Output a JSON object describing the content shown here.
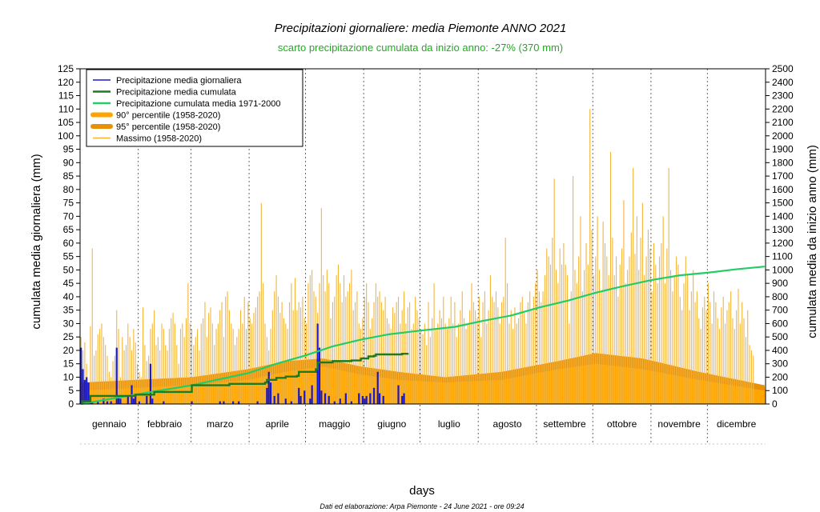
{
  "chart_data": {
    "type": "bar",
    "title": "Precipitazioni giornaliere: media Piemonte ANNO 2021",
    "subtitle": "scarto precipitazione cumulata da inizio anno: -27% (370 mm)",
    "xlabel": "days",
    "ylabel_left": "cumulata media giornaliera (mm)",
    "ylabel_right": "cumulata media da inizio anno (mm)",
    "footer": "Dati ed elaborazione: Arpa Piemonte - 24 June 2021 - ore 09:24",
    "ylim_left": [
      0,
      125
    ],
    "ylim_right": [
      0,
      2500
    ],
    "xlim": [
      1,
      365
    ],
    "months": [
      "gennaio",
      "febbraio",
      "marzo",
      "aprile",
      "maggio",
      "giugno",
      "luglio",
      "agosto",
      "settembre",
      "ottobre",
      "novembre",
      "dicembre"
    ],
    "legend_position": "top-left",
    "legend": [
      {
        "label": "Precipitazione media giornaliera",
        "color": "#1a1acc",
        "style": "bar"
      },
      {
        "label": "Precipitazione media cumulata",
        "color": "#1e7a1e",
        "style": "line"
      },
      {
        "label": "Precipitazione cumulata media 1971-2000",
        "color": "#22cc66",
        "style": "line"
      },
      {
        "label": "90° percentile (1958-2020)",
        "color": "#ffa500",
        "style": "band"
      },
      {
        "label": "95° percentile (1958-2020)",
        "color": "#e8900a",
        "style": "band"
      },
      {
        "label": "Massimo (1958-2020)",
        "color": "#f5b53a",
        "style": "bar"
      }
    ],
    "series": [
      {
        "name": "Precipitazione media giornaliera",
        "axis": "left",
        "points": [
          [
            1,
            21
          ],
          [
            2,
            13
          ],
          [
            3,
            9
          ],
          [
            4,
            10
          ],
          [
            5,
            8
          ],
          [
            6,
            3
          ],
          [
            7,
            1
          ],
          [
            10,
            1
          ],
          [
            13,
            2
          ],
          [
            15,
            1
          ],
          [
            17,
            1
          ],
          [
            20,
            21
          ],
          [
            21,
            3
          ],
          [
            22,
            2
          ],
          [
            26,
            3
          ],
          [
            28,
            7
          ],
          [
            29,
            2
          ],
          [
            30,
            3
          ],
          [
            32,
            1
          ],
          [
            36,
            3
          ],
          [
            38,
            15
          ],
          [
            39,
            2
          ],
          [
            45,
            1
          ],
          [
            60,
            1
          ],
          [
            75,
            1
          ],
          [
            77,
            1
          ],
          [
            82,
            1
          ],
          [
            85,
            1
          ],
          [
            95,
            1
          ],
          [
            100,
            6
          ],
          [
            101,
            12
          ],
          [
            102,
            8
          ],
          [
            104,
            3
          ],
          [
            106,
            4
          ],
          [
            110,
            2
          ],
          [
            113,
            1
          ],
          [
            117,
            6
          ],
          [
            118,
            3
          ],
          [
            120,
            5
          ],
          [
            123,
            2
          ],
          [
            124,
            7
          ],
          [
            127,
            30
          ],
          [
            128,
            21
          ],
          [
            129,
            5
          ],
          [
            131,
            4
          ],
          [
            133,
            3
          ],
          [
            136,
            1
          ],
          [
            139,
            2
          ],
          [
            142,
            4
          ],
          [
            145,
            1
          ],
          [
            149,
            4
          ],
          [
            151,
            3
          ],
          [
            152,
            2
          ],
          [
            153,
            3
          ],
          [
            155,
            4
          ],
          [
            157,
            6
          ],
          [
            159,
            12
          ],
          [
            160,
            4
          ],
          [
            162,
            3
          ],
          [
            170,
            7
          ],
          [
            172,
            3
          ],
          [
            173,
            4
          ]
        ]
      },
      {
        "name": "Precipitazione media cumulata",
        "axis": "right",
        "points": [
          [
            1,
            20
          ],
          [
            6,
            60
          ],
          [
            30,
            70
          ],
          [
            40,
            90
          ],
          [
            60,
            140
          ],
          [
            80,
            150
          ],
          [
            99,
            160
          ],
          [
            100,
            180
          ],
          [
            105,
            195
          ],
          [
            110,
            205
          ],
          [
            116,
            210
          ],
          [
            117,
            240
          ],
          [
            126,
            260
          ],
          [
            127,
            310
          ],
          [
            135,
            320
          ],
          [
            145,
            325
          ],
          [
            150,
            340
          ],
          [
            154,
            355
          ],
          [
            157,
            360
          ],
          [
            158,
            370
          ],
          [
            172,
            375
          ],
          [
            175,
            380
          ]
        ]
      },
      {
        "name": "Precipitazione cumulata media 1971-2000",
        "axis": "right",
        "points": [
          [
            1,
            0
          ],
          [
            30,
            70
          ],
          [
            60,
            140
          ],
          [
            90,
            230
          ],
          [
            105,
            300
          ],
          [
            120,
            360
          ],
          [
            135,
            430
          ],
          [
            150,
            480
          ],
          [
            165,
            520
          ],
          [
            180,
            545
          ],
          [
            200,
            575
          ],
          [
            215,
            620
          ],
          [
            230,
            660
          ],
          [
            245,
            720
          ],
          [
            260,
            770
          ],
          [
            275,
            830
          ],
          [
            290,
            880
          ],
          [
            305,
            925
          ],
          [
            320,
            960
          ],
          [
            335,
            980
          ],
          [
            350,
            1005
          ],
          [
            365,
            1025
          ]
        ]
      }
    ],
    "percentile_90": [
      [
        1,
        5
      ],
      [
        30,
        6
      ],
      [
        60,
        7
      ],
      [
        90,
        9
      ],
      [
        110,
        12
      ],
      [
        130,
        14
      ],
      [
        150,
        11
      ],
      [
        170,
        9
      ],
      [
        195,
        8
      ],
      [
        225,
        9
      ],
      [
        255,
        13
      ],
      [
        275,
        15
      ],
      [
        300,
        13
      ],
      [
        330,
        9
      ],
      [
        365,
        5
      ]
    ],
    "percentile_95": [
      [
        1,
        8
      ],
      [
        30,
        9
      ],
      [
        60,
        10
      ],
      [
        90,
        13
      ],
      [
        110,
        16
      ],
      [
        130,
        17
      ],
      [
        150,
        14
      ],
      [
        170,
        12
      ],
      [
        195,
        10
      ],
      [
        225,
        12
      ],
      [
        255,
        16
      ],
      [
        275,
        19
      ],
      [
        300,
        17
      ],
      [
        330,
        12
      ],
      [
        365,
        7
      ]
    ],
    "maximum_values": [
      25,
      20,
      23,
      15,
      8,
      29,
      58,
      18,
      20,
      26,
      28,
      30,
      25,
      22,
      18,
      12,
      10,
      16,
      18,
      35,
      28,
      10,
      25,
      20,
      22,
      30,
      25,
      20,
      28,
      23,
      15,
      12,
      10,
      36,
      22,
      16,
      18,
      28,
      30,
      35,
      22,
      25,
      20,
      30,
      28,
      22,
      20,
      28,
      32,
      34,
      30,
      22,
      15,
      28,
      30,
      25,
      32,
      45,
      30,
      28,
      22,
      25,
      28,
      20,
      30,
      32,
      38,
      25,
      34,
      36,
      30,
      22,
      28,
      30,
      35,
      38,
      25,
      40,
      42,
      35,
      30,
      28,
      22,
      25,
      28,
      35,
      30,
      40,
      28,
      38,
      32,
      30,
      34,
      36,
      40,
      42,
      75,
      45,
      30,
      25,
      20,
      28,
      35,
      42,
      48,
      40,
      34,
      38,
      32,
      30,
      28,
      38,
      45,
      35,
      47,
      35,
      38,
      36,
      40,
      32,
      30,
      45,
      48,
      50,
      42,
      40,
      34,
      45,
      73,
      48,
      42,
      50,
      45,
      32,
      38,
      40,
      48,
      52,
      45,
      38,
      48,
      40,
      42,
      45,
      50,
      35,
      38,
      42,
      30,
      28,
      32,
      40,
      45,
      38,
      28,
      32,
      38,
      45,
      40,
      42,
      38,
      35,
      40,
      32,
      30,
      28,
      36,
      34,
      38,
      40,
      30,
      35,
      42,
      30,
      36,
      38,
      28,
      30,
      40,
      35,
      32,
      28,
      26,
      30,
      22,
      38,
      25,
      32,
      45,
      28,
      30,
      35,
      32,
      40,
      30,
      28,
      32,
      40,
      30,
      38,
      25,
      30,
      35,
      42,
      32,
      28,
      30,
      35,
      45,
      38,
      35,
      32,
      40,
      25,
      38,
      42,
      30,
      35,
      48,
      40,
      38,
      42,
      36,
      30,
      38,
      40,
      62,
      45,
      30,
      35,
      28,
      36,
      30,
      32,
      38,
      40,
      34,
      30,
      38,
      42,
      35,
      40,
      45,
      50,
      42,
      38,
      42,
      48,
      58,
      55,
      52,
      62,
      84,
      50,
      45,
      58,
      52,
      60,
      52,
      48,
      30,
      42,
      85,
      50,
      45,
      55,
      70,
      42,
      50,
      60,
      52,
      110,
      65,
      48,
      55,
      70,
      50,
      42,
      68,
      60,
      55,
      48,
      94,
      62,
      48,
      55,
      40,
      52,
      58,
      76,
      45,
      50,
      55,
      64,
      88,
      56,
      70,
      50,
      62,
      75,
      48,
      55,
      65,
      58,
      42,
      60,
      52,
      45,
      55,
      60,
      70,
      45,
      58,
      88,
      50,
      42,
      48,
      55,
      52,
      40,
      35,
      45,
      55,
      48,
      35,
      42,
      50,
      38,
      42,
      32,
      28,
      36,
      40,
      35,
      45,
      38,
      30,
      42,
      38,
      32,
      28,
      36,
      40,
      30,
      35,
      38,
      42,
      32,
      28,
      35,
      43,
      30,
      38,
      32,
      25,
      35,
      22,
      20,
      18
    ]
  }
}
